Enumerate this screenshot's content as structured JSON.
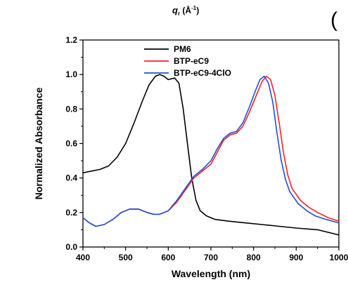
{
  "header_fragment": {
    "axis_symbol": "q",
    "axis_subscript": "r",
    "axis_unit": " (Å",
    "axis_unit_exponent": "-1",
    "axis_unit_close": ")",
    "panel_letter_fragment": "("
  },
  "colors": {
    "PM6": "#000000",
    "BTP-eC9": "#ff2020",
    "BTP-eC9-4ClO": "#1f4fd8",
    "axis": "#000000",
    "background": "#ffffff"
  },
  "chart_data": {
    "type": "line",
    "xlabel": "Wavelength (nm)",
    "ylabel": "Normalized Absorbance",
    "xlim": [
      400,
      1000
    ],
    "ylim": [
      0.0,
      1.2
    ],
    "x_ticks": [
      400,
      500,
      600,
      700,
      800,
      900,
      1000
    ],
    "y_ticks": [
      0.0,
      0.2,
      0.4,
      0.6,
      0.8,
      1.0,
      1.2
    ],
    "x_tick_labels": [
      "400",
      "500",
      "600",
      "700",
      "800",
      "900",
      "1000"
    ],
    "y_tick_labels": [
      "0.0",
      "0.2",
      "0.4",
      "0.6",
      "0.8",
      "1.0",
      "1.2"
    ],
    "grid": false,
    "legend_position": "top-center",
    "series": [
      {
        "name": "PM6",
        "color": "#000000",
        "points": [
          [
            400,
            0.43
          ],
          [
            420,
            0.44
          ],
          [
            440,
            0.45
          ],
          [
            460,
            0.47
          ],
          [
            480,
            0.52
          ],
          [
            500,
            0.6
          ],
          [
            520,
            0.72
          ],
          [
            540,
            0.85
          ],
          [
            555,
            0.94
          ],
          [
            570,
            0.99
          ],
          [
            580,
            1.0
          ],
          [
            590,
            0.99
          ],
          [
            600,
            0.97
          ],
          [
            615,
            0.98
          ],
          [
            625,
            0.95
          ],
          [
            635,
            0.8
          ],
          [
            645,
            0.6
          ],
          [
            655,
            0.4
          ],
          [
            665,
            0.27
          ],
          [
            675,
            0.21
          ],
          [
            690,
            0.18
          ],
          [
            710,
            0.16
          ],
          [
            740,
            0.15
          ],
          [
            780,
            0.14
          ],
          [
            820,
            0.13
          ],
          [
            860,
            0.12
          ],
          [
            900,
            0.11
          ],
          [
            950,
            0.1
          ],
          [
            1000,
            0.07
          ]
        ]
      },
      {
        "name": "BTP-eC9",
        "color": "#ff2020",
        "points": [
          [
            400,
            0.17
          ],
          [
            415,
            0.14
          ],
          [
            430,
            0.12
          ],
          [
            450,
            0.13
          ],
          [
            470,
            0.16
          ],
          [
            490,
            0.2
          ],
          [
            510,
            0.22
          ],
          [
            530,
            0.22
          ],
          [
            550,
            0.2
          ],
          [
            565,
            0.19
          ],
          [
            580,
            0.19
          ],
          [
            600,
            0.21
          ],
          [
            620,
            0.26
          ],
          [
            640,
            0.33
          ],
          [
            660,
            0.4
          ],
          [
            680,
            0.44
          ],
          [
            700,
            0.48
          ],
          [
            715,
            0.55
          ],
          [
            730,
            0.62
          ],
          [
            745,
            0.65
          ],
          [
            760,
            0.66
          ],
          [
            775,
            0.7
          ],
          [
            790,
            0.78
          ],
          [
            805,
            0.87
          ],
          [
            820,
            0.96
          ],
          [
            830,
            0.99
          ],
          [
            840,
            0.97
          ],
          [
            850,
            0.88
          ],
          [
            860,
            0.72
          ],
          [
            870,
            0.55
          ],
          [
            880,
            0.42
          ],
          [
            890,
            0.34
          ],
          [
            910,
            0.27
          ],
          [
            930,
            0.23
          ],
          [
            950,
            0.2
          ],
          [
            975,
            0.17
          ],
          [
            1000,
            0.15
          ]
        ]
      },
      {
        "name": "BTP-eC9-4ClO",
        "color": "#1f4fd8",
        "points": [
          [
            400,
            0.17
          ],
          [
            415,
            0.14
          ],
          [
            430,
            0.12
          ],
          [
            450,
            0.13
          ],
          [
            470,
            0.16
          ],
          [
            490,
            0.2
          ],
          [
            510,
            0.22
          ],
          [
            530,
            0.22
          ],
          [
            550,
            0.2
          ],
          [
            565,
            0.19
          ],
          [
            580,
            0.19
          ],
          [
            600,
            0.21
          ],
          [
            620,
            0.27
          ],
          [
            640,
            0.34
          ],
          [
            660,
            0.41
          ],
          [
            680,
            0.45
          ],
          [
            700,
            0.5
          ],
          [
            715,
            0.57
          ],
          [
            730,
            0.63
          ],
          [
            745,
            0.66
          ],
          [
            760,
            0.67
          ],
          [
            775,
            0.72
          ],
          [
            790,
            0.81
          ],
          [
            805,
            0.91
          ],
          [
            815,
            0.97
          ],
          [
            825,
            0.99
          ],
          [
            835,
            0.95
          ],
          [
            845,
            0.84
          ],
          [
            855,
            0.66
          ],
          [
            865,
            0.5
          ],
          [
            875,
            0.39
          ],
          [
            885,
            0.32
          ],
          [
            905,
            0.25
          ],
          [
            925,
            0.21
          ],
          [
            945,
            0.18
          ],
          [
            970,
            0.16
          ],
          [
            1000,
            0.14
          ]
        ]
      }
    ]
  }
}
